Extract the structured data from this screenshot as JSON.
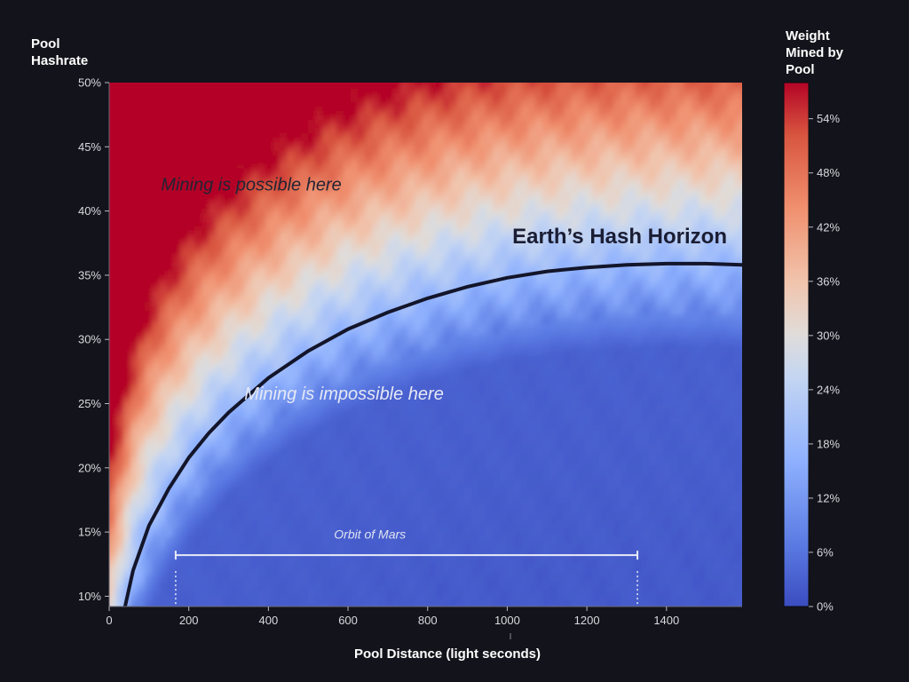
{
  "chart_data": {
    "type": "heatmap",
    "title": "",
    "xlabel": "Pool Distance (light seconds)",
    "ylabel_lines": [
      "Pool",
      "Hashrate"
    ],
    "xlim": [
      0,
      1590
    ],
    "ylim": [
      9.2,
      50
    ],
    "x_ticks": [
      {
        "value": 0,
        "label": "0"
      },
      {
        "value": 200,
        "label": "200"
      },
      {
        "value": 400,
        "label": "400"
      },
      {
        "value": 600,
        "label": "600"
      },
      {
        "value": 800,
        "label": "800"
      },
      {
        "value": 1000,
        "label": "1000"
      },
      {
        "value": 1200,
        "label": "1200"
      },
      {
        "value": 1400,
        "label": "1400"
      }
    ],
    "y_ticks": [
      {
        "value": 10,
        "label": "10%"
      },
      {
        "value": 15,
        "label": "15%"
      },
      {
        "value": 20,
        "label": "20%"
      },
      {
        "value": 25,
        "label": "25%"
      },
      {
        "value": 30,
        "label": "30%"
      },
      {
        "value": 35,
        "label": "35%"
      },
      {
        "value": 40,
        "label": "40%"
      },
      {
        "value": 45,
        "label": "45%"
      },
      {
        "value": 50,
        "label": "50%"
      }
    ],
    "colorbar": {
      "label_lines": [
        "Weight",
        "Mined by",
        "Pool"
      ],
      "range": [
        0,
        58
      ],
      "colormap": "coolwarm",
      "ticks": [
        {
          "value": 0,
          "label": "0%"
        },
        {
          "value": 6,
          "label": "6%"
        },
        {
          "value": 12,
          "label": "12%"
        },
        {
          "value": 18,
          "label": "18%"
        },
        {
          "value": 24,
          "label": "24%"
        },
        {
          "value": 30,
          "label": "30%"
        },
        {
          "value": 36,
          "label": "36%"
        },
        {
          "value": 42,
          "label": "42%"
        },
        {
          "value": 48,
          "label": "48%"
        },
        {
          "value": 54,
          "label": "54%"
        }
      ]
    },
    "horizon_curve": {
      "label": "Earth’s Hash Horizon",
      "points": [
        [
          40,
          9.2
        ],
        [
          60,
          12
        ],
        [
          100,
          15.5
        ],
        [
          150,
          18.4
        ],
        [
          200,
          20.8
        ],
        [
          250,
          22.7
        ],
        [
          300,
          24.3
        ],
        [
          400,
          27.0
        ],
        [
          500,
          29.1
        ],
        [
          600,
          30.8
        ],
        [
          700,
          32.1
        ],
        [
          800,
          33.2
        ],
        [
          900,
          34.1
        ],
        [
          1000,
          34.8
        ],
        [
          1100,
          35.3
        ],
        [
          1200,
          35.6
        ],
        [
          1300,
          35.8
        ],
        [
          1400,
          35.9
        ],
        [
          1500,
          35.9
        ],
        [
          1590,
          35.8
        ]
      ]
    },
    "annotations": [
      {
        "text": "Mining is possible here",
        "x": 130,
        "y": 41.6,
        "style": "possible"
      },
      {
        "text": "Mining is impossible here",
        "x": 590,
        "y": 25.3,
        "style": "impossible"
      },
      {
        "text": "Orbit of Mars",
        "x": 655,
        "y": 14.5,
        "style": "mars"
      }
    ],
    "orbit_of_mars": {
      "x_start": 167,
      "x_end": 1327,
      "y": 13.2
    }
  }
}
